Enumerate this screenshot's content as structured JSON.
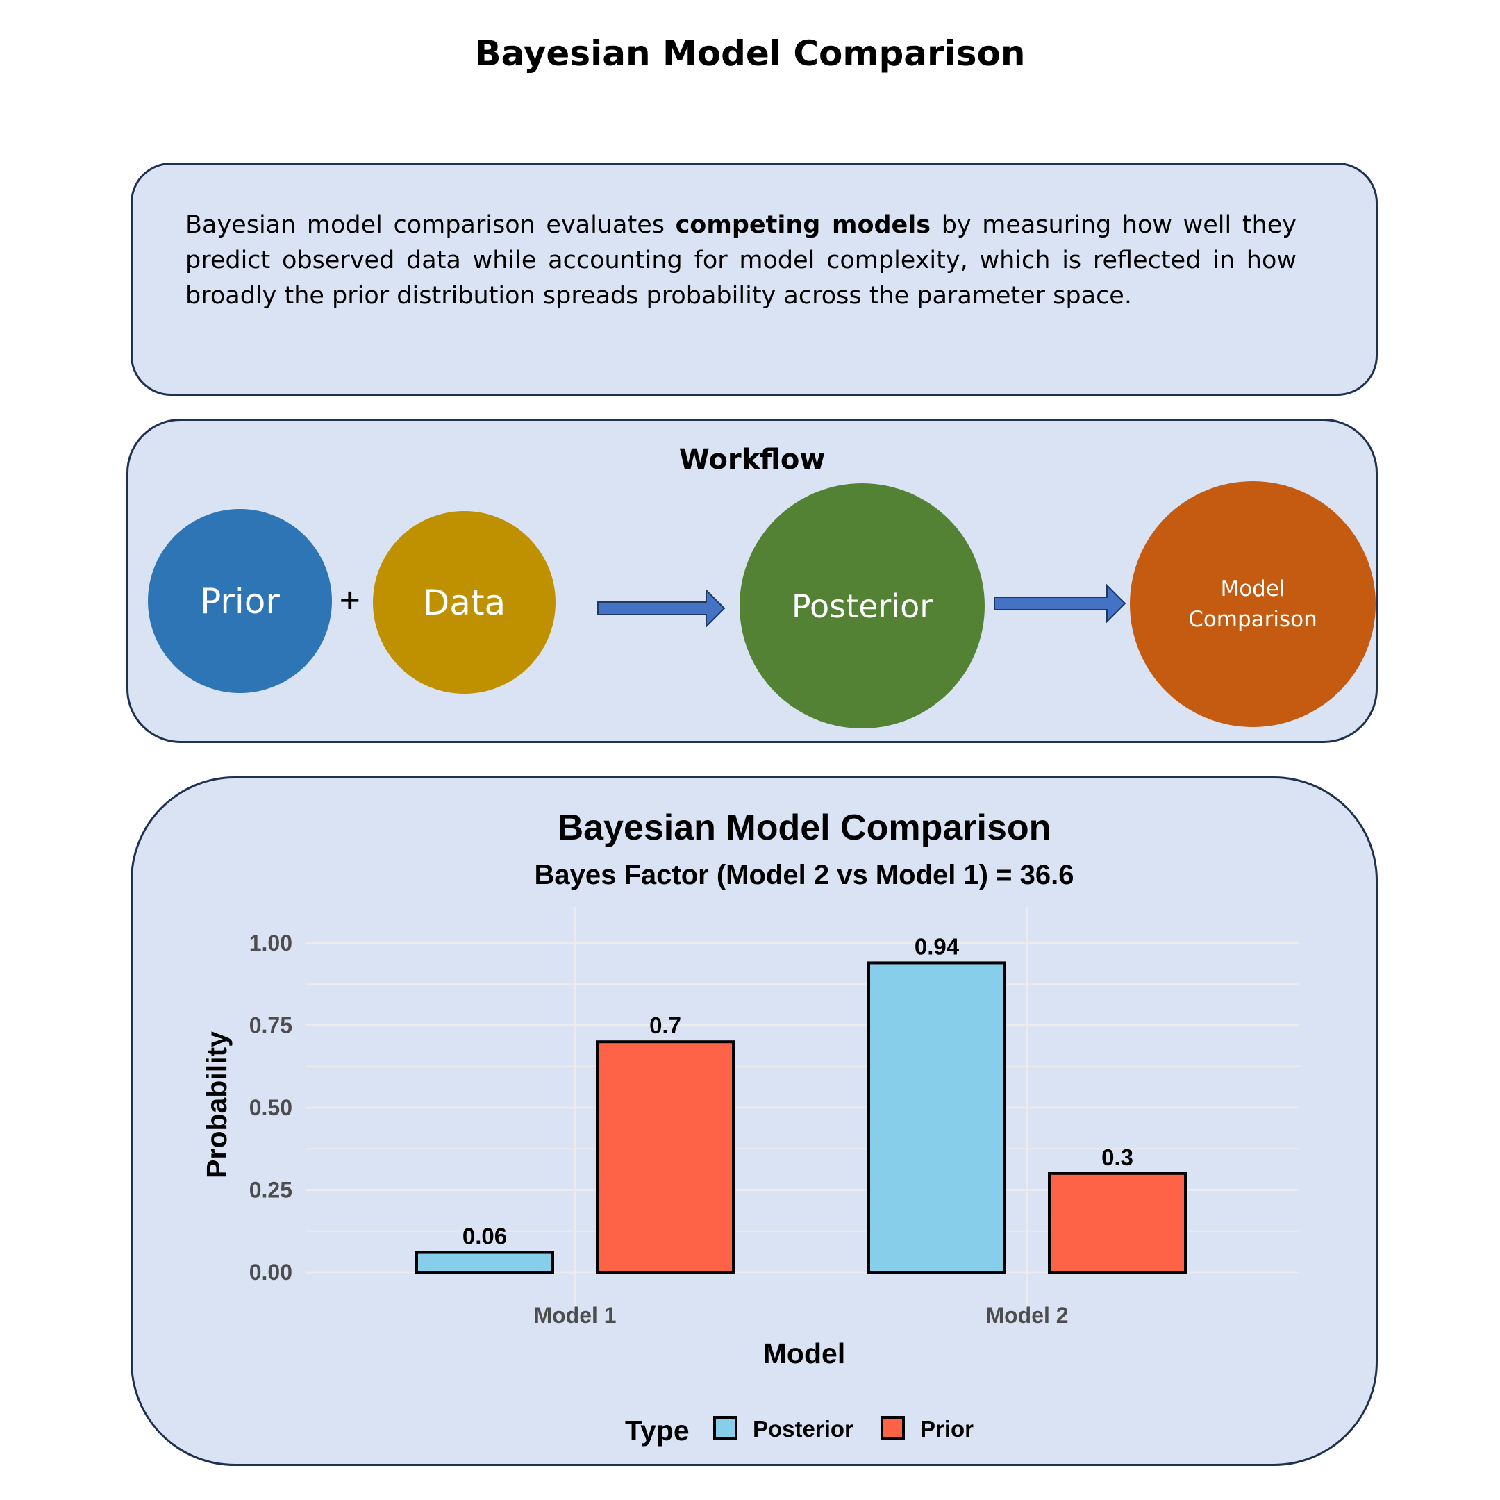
{
  "page_title": "Bayesian Model Comparison",
  "description": {
    "before": "Bayesian model comparison evaluates ",
    "bold": "competing models",
    "after": " by measuring how well they predict observed data while accounting for model complexity, which is reflected in how broadly the prior distribution spreads probability across the parameter space."
  },
  "workflow": {
    "title": "Workflow",
    "plus": "+",
    "nodes": {
      "prior": "Prior",
      "data": "Data",
      "posterior": "Posterior",
      "comparison": "Model Comparison"
    },
    "colors": {
      "prior": "#2e75b6",
      "data": "#bf9000",
      "posterior": "#548235",
      "comparison": "#c55a11",
      "arrow": "#4472c4"
    }
  },
  "chart_data": {
    "type": "bar",
    "title": "Bayesian Model Comparison",
    "subtitle": "Bayes Factor (Model 2 vs Model 1) = 36.6",
    "xlabel": "Model",
    "ylabel": "Probability",
    "categories": [
      "Model 1",
      "Model 2"
    ],
    "series": [
      {
        "name": "Posterior",
        "values": [
          0.06,
          0.94
        ],
        "labels": [
          "0.06",
          "0.94"
        ],
        "color": "#87ceeb"
      },
      {
        "name": "Prior",
        "values": [
          0.7,
          0.3
        ],
        "labels": [
          "0.7",
          "0.3"
        ],
        "color": "#ff6347"
      }
    ],
    "ylim": [
      0,
      1.0
    ],
    "yticks": [
      0,
      0.25,
      0.5,
      0.75,
      1.0
    ],
    "ytick_labels": [
      "0.00",
      "0.25",
      "0.50",
      "0.75",
      "1.00"
    ],
    "grid": true,
    "legend_title": "Type",
    "legend_position": "bottom"
  }
}
